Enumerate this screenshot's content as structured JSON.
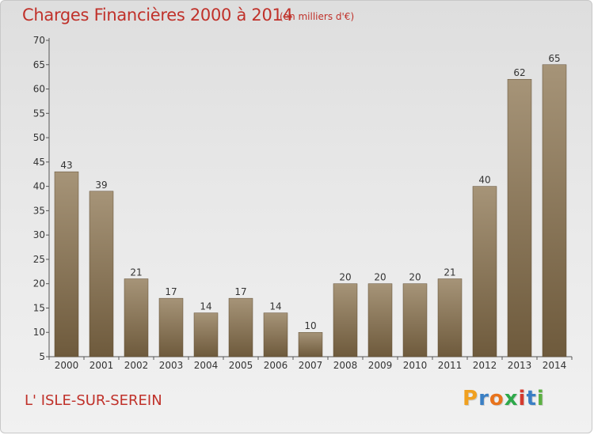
{
  "header": {
    "title": "Charges Financières 2000 à 2014",
    "subtitle": "(en milliers d'€)"
  },
  "footer": {
    "commune": "L' ISLE-SUR-SEREIN",
    "brand": "Proxiti",
    "brand_letters": [
      "P",
      "r",
      "o",
      "x",
      "i",
      "t",
      "i"
    ],
    "brand_colors": [
      "#f0a020",
      "#3a7fc4",
      "#e8731c",
      "#2ea84a",
      "#d43a2e",
      "#3a7fc4",
      "#5bb042"
    ]
  },
  "chart_data": {
    "type": "bar",
    "categories": [
      "2000",
      "2001",
      "2002",
      "2003",
      "2004",
      "2005",
      "2006",
      "2007",
      "2008",
      "2009",
      "2010",
      "2011",
      "2012",
      "2013",
      "2014"
    ],
    "values": [
      43,
      39,
      21,
      17,
      14,
      17,
      14,
      10,
      20,
      20,
      20,
      21,
      40,
      62,
      65
    ],
    "title": "Charges Financières 2000 à 2014",
    "ylim": [
      5,
      70
    ],
    "yticks": [
      5,
      10,
      15,
      20,
      25,
      30,
      35,
      40,
      45,
      50,
      55,
      60,
      65,
      70
    ],
    "grid": false,
    "bar_color_top": "#a69478",
    "bar_color_bottom": "#6e5a3c"
  }
}
